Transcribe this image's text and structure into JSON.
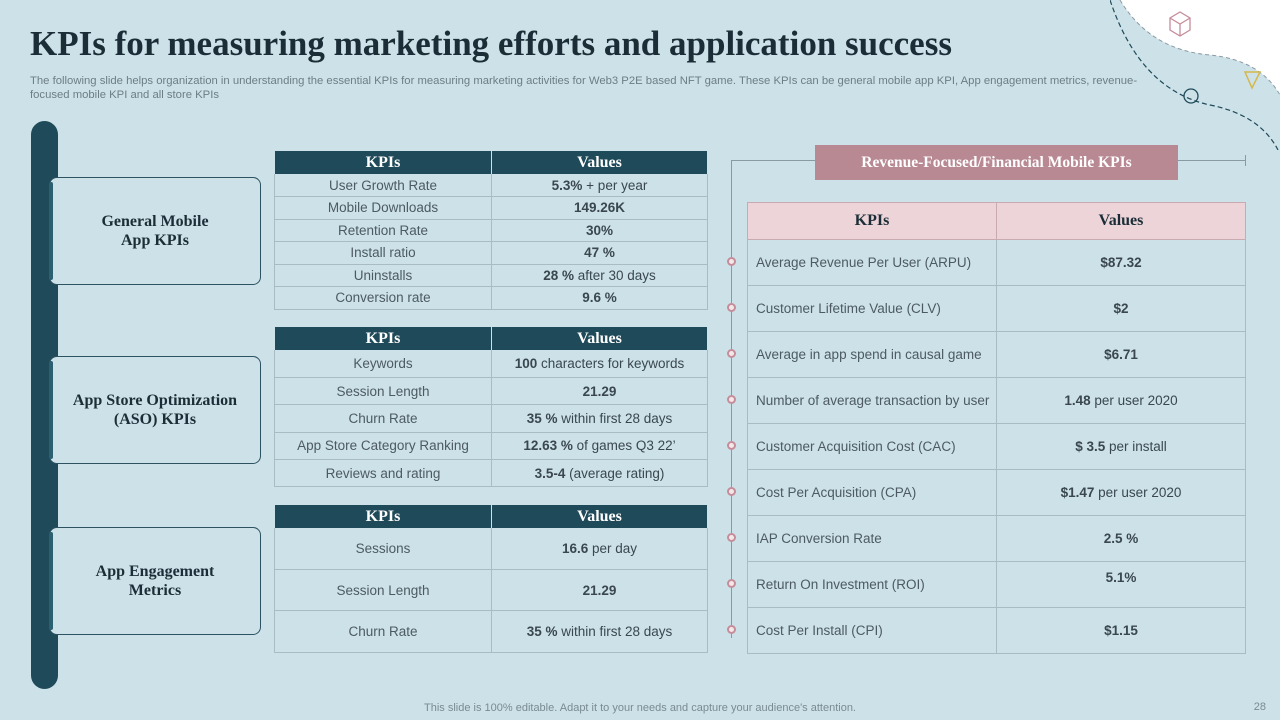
{
  "title": "KPIs for measuring marketing efforts and application success",
  "subtitle": "The following slide helps organization in understanding the essential KPIs for measuring marketing activities for Web3 P2E based NFT game. These KPIs can be general mobile app KPI, App engagement metrics, revenue- focused mobile KPI and all store KPIs",
  "categories": {
    "general": "General Mobile App KPIs",
    "aso": "App Store Optimization (ASO) KPIs",
    "engagement": "App Engagement Metrics"
  },
  "headers": {
    "kpis": "KPIs",
    "values": "Values"
  },
  "general_table": [
    {
      "kpi": "User Growth Rate",
      "value": "5.3%",
      "note": " + per year"
    },
    {
      "kpi": "Mobile Downloads",
      "value": "149.26K",
      "note": ""
    },
    {
      "kpi": "Retention Rate",
      "value": "30%",
      "note": ""
    },
    {
      "kpi": "Install ratio",
      "value": "47 %",
      "note": ""
    },
    {
      "kpi": "Uninstalls",
      "value": "28 %",
      "note": "  after 30 days"
    },
    {
      "kpi": "Conversion  rate",
      "value": "9.6 %",
      "note": ""
    }
  ],
  "aso_table": [
    {
      "kpi": "Keywords",
      "value": "100",
      "note": " characters for keywords"
    },
    {
      "kpi": "Session Length",
      "value": "21.29",
      "note": ""
    },
    {
      "kpi": "Churn  Rate",
      "value": "35 %",
      "note": "  within first 28 days"
    },
    {
      "kpi": "App Store Category Ranking",
      "value": "12.63 %",
      "note": " of games Q3 22’"
    },
    {
      "kpi": "Reviews  and rating",
      "value": "3.5-4",
      "note": " (average  rating)"
    }
  ],
  "engagement_table": [
    {
      "kpi": "Sessions",
      "value": "16.6",
      "note": " per day"
    },
    {
      "kpi": "Session Length",
      "value": "21.29",
      "note": ""
    },
    {
      "kpi": "Churn  Rate",
      "value": "35 %",
      "note": "  within first 28 days"
    }
  ],
  "revenue": {
    "header": "Revenue-Focused/Financial Mobile KPIs",
    "rows": [
      {
        "kpi": "Average  Revenue  Per User (ARPU)",
        "value": "$87.32",
        "note": ""
      },
      {
        "kpi": "Customer Lifetime Value (CLV)",
        "value": "$2",
        "note": ""
      },
      {
        "kpi": "Average  in app spend in causal game",
        "value": "$6.71",
        "note": ""
      },
      {
        "kpi": "Number of average  transaction by user",
        "value": "1.48",
        "note": " per user 2020"
      },
      {
        "kpi": "Customer Acquisition Cost (CAC)",
        "value": "$ 3.5",
        "note": " per install"
      },
      {
        "kpi": "Cost Per Acquisition (CPA)",
        "value": "$1.47",
        "note": "  per user 2020"
      },
      {
        "kpi": "IAP Conversion  Rate",
        "value": "2.5 %",
        "note": ""
      },
      {
        "kpi": "Return On Investment  (ROI)",
        "value": "5.1%",
        "note": ""
      },
      {
        "kpi": "Cost Per Install (CPI)",
        "value": "$1.15",
        "note": ""
      }
    ]
  },
  "footer": "This slide is 100% editable. Adapt it to your needs and capture your audience's attention.",
  "page_number": "28",
  "colors": {
    "background": "#cde1e8",
    "dark_teal": "#1f4a59",
    "rose_header": "#b88893",
    "rose_light": "#ecd4d8"
  }
}
